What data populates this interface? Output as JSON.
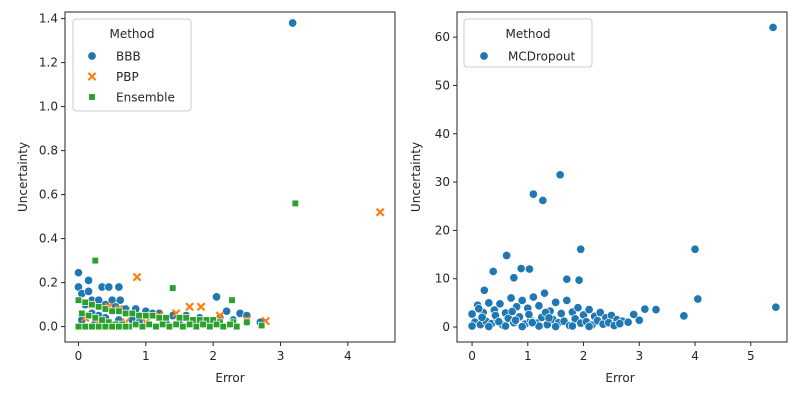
{
  "chart_data": [
    {
      "type": "scatter",
      "xlabel": "Error",
      "ylabel": "Uncertainty",
      "xlim": [
        -0.2,
        4.7
      ],
      "ylim": [
        -0.07,
        1.43
      ],
      "xticks": [
        "0",
        "1",
        "2",
        "3",
        "4"
      ],
      "xtick_values": [
        0,
        1,
        2,
        3,
        4
      ],
      "yticks": [
        "0.0",
        "0.2",
        "0.4",
        "0.6",
        "0.8",
        "1.0",
        "1.2",
        "1.4"
      ],
      "ytick_values": [
        0,
        0.2,
        0.4,
        0.6,
        0.8,
        1.0,
        1.2,
        1.4
      ],
      "legend": {
        "title": "Method",
        "placement": "upper-left"
      },
      "series": [
        {
          "name": "BBB",
          "color": "#1f77b4",
          "marker": "circle",
          "points": [
            [
              3.18,
              1.38
            ],
            [
              0.0,
              0.245
            ],
            [
              0.15,
              0.21
            ],
            [
              0.0,
              0.18
            ],
            [
              0.05,
              0.15
            ],
            [
              0.35,
              0.18
            ],
            [
              0.45,
              0.18
            ],
            [
              0.6,
              0.18
            ],
            [
              0.15,
              0.16
            ],
            [
              0.2,
              0.12
            ],
            [
              0.3,
              0.12
            ],
            [
              0.5,
              0.12
            ],
            [
              0.62,
              0.12
            ],
            [
              0.1,
              0.1
            ],
            [
              0.4,
              0.1
            ],
            [
              0.55,
              0.09
            ],
            [
              0.7,
              0.08
            ],
            [
              0.85,
              0.08
            ],
            [
              1.0,
              0.07
            ],
            [
              1.1,
              0.06
            ],
            [
              1.2,
              0.06
            ],
            [
              1.4,
              0.05
            ],
            [
              1.6,
              0.05
            ],
            [
              1.8,
              0.04
            ],
            [
              2.05,
              0.135
            ],
            [
              2.2,
              0.07
            ],
            [
              2.4,
              0.06
            ],
            [
              2.5,
              0.05
            ],
            [
              2.1,
              0.04
            ],
            [
              2.3,
              0.03
            ],
            [
              2.5,
              0.02
            ],
            [
              2.7,
              0.02
            ],
            [
              0.2,
              0.06
            ],
            [
              0.3,
              0.05
            ],
            [
              0.4,
              0.04
            ],
            [
              0.6,
              0.03
            ],
            [
              0.8,
              0.03
            ],
            [
              0.9,
              0.02
            ],
            [
              1.3,
              0.02
            ],
            [
              1.5,
              0.01
            ],
            [
              1.7,
              0.01
            ],
            [
              1.9,
              0.01
            ],
            [
              0.05,
              0.03
            ],
            [
              0.25,
              0.02
            ],
            [
              0.45,
              0.01
            ]
          ]
        },
        {
          "name": "PBP",
          "color": "#ff7f0e",
          "marker": "x",
          "points": [
            [
              4.48,
              0.52
            ],
            [
              0.87,
              0.225
            ],
            [
              1.65,
              0.09
            ],
            [
              1.82,
              0.09
            ],
            [
              2.1,
              0.05
            ],
            [
              2.5,
              0.03
            ],
            [
              2.78,
              0.025
            ],
            [
              0.2,
              0.1
            ],
            [
              0.45,
              0.09
            ],
            [
              0.6,
              0.08
            ],
            [
              1.2,
              0.05
            ],
            [
              1.45,
              0.06
            ],
            [
              0.1,
              0.04
            ],
            [
              0.3,
              0.03
            ],
            [
              0.7,
              0.02
            ],
            [
              1.0,
              0.02
            ]
          ]
        },
        {
          "name": "Ensemble",
          "color": "#2ca02c",
          "marker": "square",
          "points": [
            [
              3.22,
              0.56
            ],
            [
              0.25,
              0.3
            ],
            [
              1.4,
              0.175
            ],
            [
              2.28,
              0.12
            ],
            [
              0.0,
              0.12
            ],
            [
              0.1,
              0.11
            ],
            [
              0.2,
              0.1
            ],
            [
              0.3,
              0.09
            ],
            [
              0.4,
              0.08
            ],
            [
              0.5,
              0.07
            ],
            [
              0.6,
              0.07
            ],
            [
              0.7,
              0.06
            ],
            [
              0.8,
              0.06
            ],
            [
              0.9,
              0.05
            ],
            [
              1.0,
              0.05
            ],
            [
              1.1,
              0.05
            ],
            [
              1.2,
              0.04
            ],
            [
              1.3,
              0.04
            ],
            [
              1.5,
              0.04
            ],
            [
              1.6,
              0.04
            ],
            [
              1.7,
              0.03
            ],
            [
              1.8,
              0.03
            ],
            [
              1.9,
              0.03
            ],
            [
              2.0,
              0.03
            ],
            [
              2.1,
              0.02
            ],
            [
              2.3,
              0.02
            ],
            [
              2.5,
              0.02
            ],
            [
              2.72,
              0.005
            ],
            [
              0.05,
              0.06
            ],
            [
              0.15,
              0.05
            ],
            [
              0.25,
              0.04
            ],
            [
              0.35,
              0.03
            ],
            [
              0.45,
              0.02
            ],
            [
              0.55,
              0.01
            ],
            [
              0.65,
              0.01
            ],
            [
              0.75,
              0.0
            ],
            [
              0.85,
              0.01
            ],
            [
              0.95,
              0.0
            ],
            [
              1.05,
              0.01
            ],
            [
              1.15,
              0.0
            ],
            [
              1.25,
              0.01
            ],
            [
              1.35,
              0.0
            ],
            [
              1.45,
              0.01
            ],
            [
              1.55,
              0.0
            ],
            [
              1.65,
              0.01
            ],
            [
              1.75,
              0.0
            ],
            [
              1.85,
              0.01
            ],
            [
              1.95,
              0.0
            ],
            [
              2.05,
              0.01
            ],
            [
              2.15,
              0.0
            ],
            [
              2.25,
              0.01
            ],
            [
              2.35,
              0.0
            ],
            [
              0.0,
              0.0
            ],
            [
              0.1,
              0.0
            ],
            [
              0.2,
              0.0
            ],
            [
              0.3,
              0.0
            ],
            [
              0.4,
              0.0
            ],
            [
              0.5,
              0.0
            ],
            [
              0.6,
              0.0
            ],
            [
              0.7,
              0.0
            ]
          ]
        }
      ]
    },
    {
      "type": "scatter",
      "xlabel": "Error",
      "ylabel": "Uncertainty",
      "xlim": [
        -0.27,
        5.65
      ],
      "ylim": [
        -3.1,
        65.2
      ],
      "xticks": [
        "0",
        "1",
        "2",
        "3",
        "4",
        "5"
      ],
      "xtick_values": [
        0,
        1,
        2,
        3,
        4,
        5
      ],
      "yticks": [
        "0",
        "10",
        "20",
        "30",
        "40",
        "50",
        "60"
      ],
      "ytick_values": [
        0,
        10,
        20,
        30,
        40,
        50,
        60
      ],
      "legend": {
        "title": "Method",
        "placement": "upper-left"
      },
      "series": [
        {
          "name": "MCDropout",
          "color": "#1f77b4",
          "marker": "circle",
          "points": [
            [
              5.4,
              62.0
            ],
            [
              1.58,
              31.5
            ],
            [
              1.1,
              27.5
            ],
            [
              1.27,
              26.2
            ],
            [
              1.95,
              16.1
            ],
            [
              4.0,
              16.1
            ],
            [
              0.62,
              14.8
            ],
            [
              0.88,
              12.1
            ],
            [
              1.03,
              12.0
            ],
            [
              0.38,
              11.5
            ],
            [
              0.75,
              10.2
            ],
            [
              1.7,
              9.9
            ],
            [
              1.92,
              9.7
            ],
            [
              0.22,
              7.6
            ],
            [
              4.05,
              5.8
            ],
            [
              5.45,
              4.1
            ],
            [
              3.8,
              2.3
            ],
            [
              3.1,
              3.7
            ],
            [
              3.3,
              3.6
            ],
            [
              2.9,
              2.6
            ],
            [
              0.0,
              2.7
            ],
            [
              0.1,
              4.5
            ],
            [
              0.2,
              3.0
            ],
            [
              0.3,
              5.0
            ],
            [
              0.4,
              3.5
            ],
            [
              0.5,
              4.8
            ],
            [
              0.6,
              2.9
            ],
            [
              0.7,
              6.0
            ],
            [
              0.8,
              4.2
            ],
            [
              0.9,
              5.5
            ],
            [
              1.0,
              3.9
            ],
            [
              1.1,
              6.2
            ],
            [
              1.2,
              4.4
            ],
            [
              1.3,
              7.0
            ],
            [
              1.4,
              3.3
            ],
            [
              1.5,
              5.1
            ],
            [
              1.6,
              2.8
            ],
            [
              1.7,
              5.5
            ],
            [
              1.8,
              3.1
            ],
            [
              1.9,
              4.0
            ],
            [
              2.0,
              2.5
            ],
            [
              2.1,
              3.6
            ],
            [
              2.2,
              2.2
            ],
            [
              2.3,
              3.0
            ],
            [
              2.4,
              1.9
            ],
            [
              2.5,
              2.4
            ],
            [
              2.6,
              1.5
            ],
            [
              2.7,
              1.2
            ],
            [
              2.8,
              1.0
            ],
            [
              3.0,
              1.4
            ],
            [
              0.05,
              1.0
            ],
            [
              0.15,
              0.5
            ],
            [
              0.25,
              1.2
            ],
            [
              0.35,
              0.7
            ],
            [
              0.45,
              1.5
            ],
            [
              0.55,
              0.4
            ],
            [
              0.65,
              1.8
            ],
            [
              0.75,
              0.9
            ],
            [
              0.85,
              2.1
            ],
            [
              0.95,
              0.6
            ],
            [
              1.05,
              1.4
            ],
            [
              1.15,
              0.8
            ],
            [
              1.25,
              2.0
            ],
            [
              1.35,
              0.5
            ],
            [
              1.45,
              1.6
            ],
            [
              1.55,
              0.9
            ],
            [
              1.65,
              1.2
            ],
            [
              1.75,
              0.3
            ],
            [
              1.85,
              1.7
            ],
            [
              1.95,
              0.8
            ],
            [
              2.05,
              1.1
            ],
            [
              2.15,
              0.4
            ],
            [
              2.25,
              1.3
            ],
            [
              2.35,
              0.6
            ],
            [
              2.45,
              0.9
            ],
            [
              2.55,
              0.3
            ],
            [
              2.65,
              0.7
            ],
            [
              0.0,
              0.2
            ],
            [
              0.3,
              0.1
            ],
            [
              0.6,
              0.2
            ],
            [
              0.9,
              0.1
            ],
            [
              1.2,
              0.2
            ],
            [
              1.5,
              0.1
            ],
            [
              1.8,
              0.2
            ],
            [
              2.1,
              0.1
            ],
            [
              0.12,
              3.8
            ],
            [
              0.42,
              2.4
            ],
            [
              0.72,
              3.2
            ],
            [
              1.02,
              2.6
            ],
            [
              1.32,
              3.0
            ],
            [
              0.18,
              2.0
            ],
            [
              0.48,
              1.1
            ],
            [
              0.78,
              1.4
            ],
            [
              1.08,
              0.9
            ],
            [
              1.38,
              1.9
            ]
          ]
        }
      ]
    }
  ]
}
